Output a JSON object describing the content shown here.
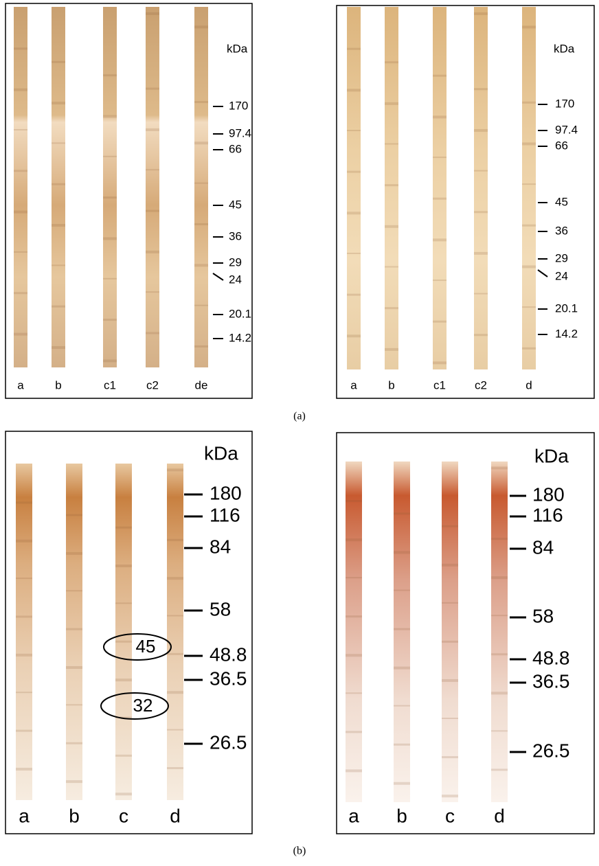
{
  "panels": [
    {
      "unit": "kDa",
      "markers": [
        "170",
        "97.4",
        "66",
        "45",
        "36",
        "29",
        "24",
        "20.1",
        "14.2"
      ],
      "lanes": [
        "a",
        "b",
        "c1",
        "c2",
        "de"
      ]
    },
    {
      "unit": "kDa",
      "markers": [
        "170",
        "97.4",
        "66",
        "45",
        "36",
        "29",
        "24",
        "20.1",
        "14.2"
      ],
      "lanes": [
        "a",
        "b",
        "c1",
        "c2",
        "d"
      ]
    },
    {
      "unit": "kDa",
      "markers": [
        "180",
        "116",
        "84",
        "58",
        "48.8",
        "36.5",
        "26.5"
      ],
      "lanes": [
        "a",
        "b",
        "c",
        "d"
      ],
      "annotations": [
        "45",
        "32"
      ]
    },
    {
      "unit": "kDa",
      "markers": [
        "180",
        "116",
        "84",
        "58",
        "48.8",
        "36.5",
        "26.5"
      ],
      "lanes": [
        "a",
        "b",
        "c",
        "d"
      ]
    }
  ],
  "captions": [
    "(a)",
    "(b)"
  ]
}
